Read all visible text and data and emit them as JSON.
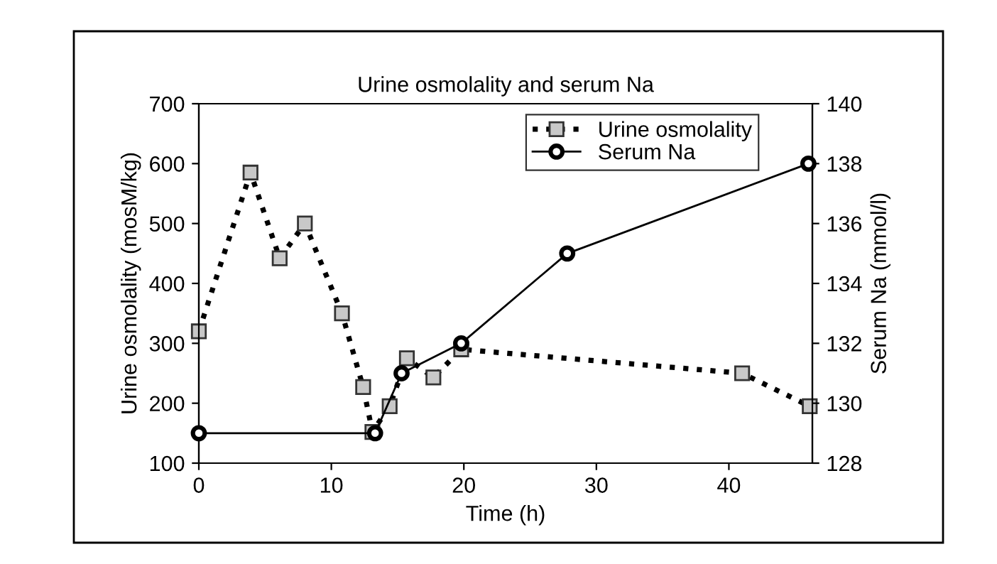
{
  "chart_data": {
    "type": "line",
    "title": "Urine osmolality and serum Na",
    "xlabel": "Time (h)",
    "ylabel": "Urine osmolality (mosM/kg)",
    "y2label": "Serum Na (mmol/l)",
    "xlim": [
      0,
      46.3
    ],
    "xticks": [
      0,
      10,
      20,
      30,
      40
    ],
    "ylim": [
      100,
      700
    ],
    "yticks": [
      100,
      200,
      300,
      400,
      500,
      600,
      700
    ],
    "y2lim": [
      128,
      140
    ],
    "y2ticks": [
      128,
      130,
      132,
      134,
      136,
      138,
      140
    ],
    "legend": "top right",
    "grid": false,
    "series": [
      {
        "name": "Urine osmolality",
        "color": "#000000",
        "marker": "square",
        "line_style": "dotted",
        "x": [
          0,
          3.9,
          6.1,
          8.0,
          10.8,
          12.4,
          13.1,
          14.4,
          15.7,
          17.7,
          19.8,
          41.0,
          46.1
        ],
        "values": [
          320,
          585,
          442,
          500,
          350,
          227,
          152,
          195,
          275,
          243,
          290,
          250,
          195
        ]
      },
      {
        "name": "Serum Na",
        "color": "#000000",
        "marker": "circle",
        "line_style": "solid",
        "axis": "y2",
        "x": [
          0,
          13.3,
          15.3,
          19.8,
          27.8,
          46.0
        ],
        "values": [
          129,
          129,
          131,
          132,
          135,
          138
        ]
      }
    ]
  }
}
